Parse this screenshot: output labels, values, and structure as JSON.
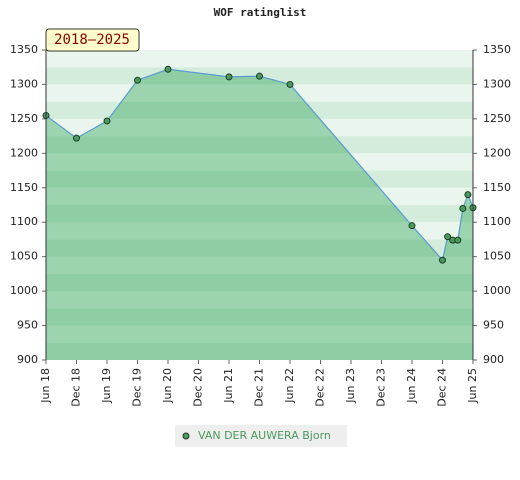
{
  "chart_data": {
    "type": "area",
    "title": "WOF ratinglist",
    "annotation": "2018–2025",
    "series": [
      {
        "name": "VAN DER AUWERA Bjorn",
        "color": "#4a9a5e",
        "x": [
          "2018-06",
          "2018-12",
          "2019-06",
          "2019-12",
          "2020-06",
          "2021-06",
          "2021-12",
          "2022-06",
          "2024-06",
          "2024-12",
          "2025-01",
          "2025-02",
          "2025-03",
          "2025-04",
          "2025-05",
          "2025-06"
        ],
        "values": [
          1255,
          1222,
          1247,
          1306,
          1322,
          1311,
          1312,
          1300,
          1095,
          1045,
          1079,
          1074,
          1074,
          1120,
          1140,
          1121
        ]
      }
    ],
    "xlim": [
      "2018-06",
      "2025-06"
    ],
    "xticks": [
      {
        "value": "2018-06",
        "label": "Jun 18"
      },
      {
        "value": "2018-12",
        "label": "Dec 18"
      },
      {
        "value": "2019-06",
        "label": "Jun 19"
      },
      {
        "value": "2019-12",
        "label": "Dec 19"
      },
      {
        "value": "2020-06",
        "label": "Jun 20"
      },
      {
        "value": "2020-12",
        "label": "Dec 20"
      },
      {
        "value": "2021-06",
        "label": "Jun 21"
      },
      {
        "value": "2021-12",
        "label": "Dec 21"
      },
      {
        "value": "2022-06",
        "label": "Jun 22"
      },
      {
        "value": "2022-12",
        "label": "Dec 22"
      },
      {
        "value": "2023-06",
        "label": "Jun 23"
      },
      {
        "value": "2023-12",
        "label": "Dec 23"
      },
      {
        "value": "2024-06",
        "label": "Jun 24"
      },
      {
        "value": "2024-12",
        "label": "Dec 24"
      },
      {
        "value": "2025-06",
        "label": "Jun 25"
      }
    ],
    "ylim": [
      900,
      1350
    ],
    "yticks": [
      900,
      950,
      1000,
      1050,
      1100,
      1150,
      1200,
      1250,
      1300,
      1350
    ],
    "y2lim": [
      900,
      1350
    ],
    "y2ticks": [
      900,
      950,
      1000,
      1050,
      1100,
      1150,
      1200,
      1250,
      1300,
      1350
    ]
  }
}
